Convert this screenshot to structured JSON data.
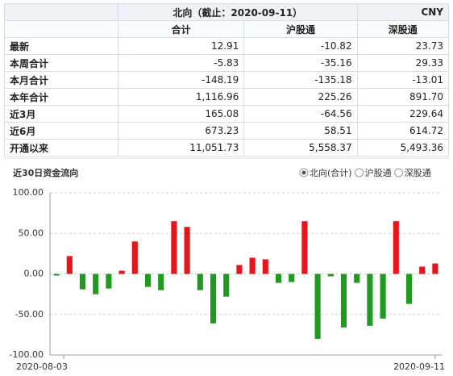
{
  "table": {
    "title": "北向（截止：2020-09-11）",
    "currency": "CNY",
    "columns": [
      "合计",
      "沪股通",
      "深股通"
    ],
    "rows": [
      [
        "最新",
        "12.91",
        "-10.82",
        "23.73"
      ],
      [
        "本周合计",
        "-5.83",
        "-35.16",
        "29.33"
      ],
      [
        "本月合计",
        "-148.19",
        "-135.18",
        "-13.01"
      ],
      [
        "本年合计",
        "1,116.96",
        "225.26",
        "891.70"
      ],
      [
        "近3月",
        "165.08",
        "-64.56",
        "229.64"
      ],
      [
        "近6月",
        "673.23",
        "58.51",
        "614.72"
      ],
      [
        "开通以来",
        "11,051.73",
        "5,558.37",
        "5,493.36"
      ]
    ]
  },
  "chart_data": {
    "type": "bar",
    "title": "近30日资金流向",
    "legend_options": [
      "北向(合计)",
      "沪股通",
      "深股通"
    ],
    "selected_option": 0,
    "categories": [
      "2020-08-03",
      null,
      null,
      null,
      null,
      null,
      null,
      null,
      null,
      null,
      null,
      null,
      null,
      null,
      null,
      null,
      null,
      null,
      null,
      null,
      null,
      null,
      null,
      null,
      null,
      null,
      null,
      null,
      null,
      "2020-09-11"
    ],
    "values": [
      -2,
      22,
      -19,
      -25,
      -18,
      4,
      40,
      -16,
      -20,
      65,
      58,
      -20,
      -61,
      -28,
      11,
      20,
      18,
      -11,
      -10,
      65,
      -80,
      -3,
      -66,
      -11,
      -64,
      -55,
      65,
      -37,
      9,
      12.91
    ],
    "positive_color": "#e8141b",
    "negative_color": "#1f9a1f",
    "ylim": [
      -100,
      100
    ],
    "yticks": [
      {
        "value": 100,
        "label": "100.00"
      },
      {
        "value": 50,
        "label": "50.00"
      },
      {
        "value": 0,
        "label": "0.00"
      },
      {
        "value": -50,
        "label": "-50.00"
      },
      {
        "value": -100,
        "label": "-100.00"
      }
    ],
    "grid": true
  }
}
